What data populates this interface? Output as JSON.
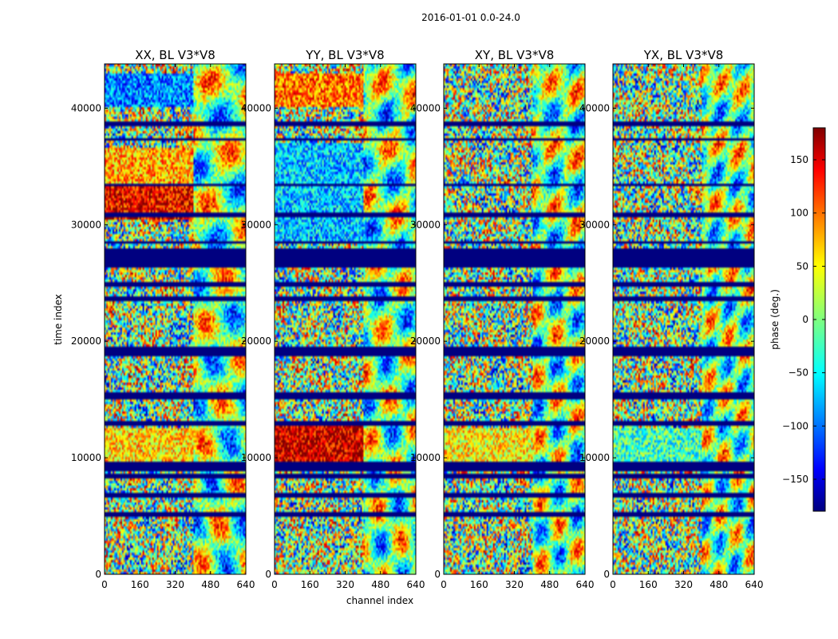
{
  "figure": {
    "suptitle": "2016-01-01 0.0-24.0",
    "xlabel": "channel index",
    "ylabel": "time index"
  },
  "chart_data": {
    "type": "heatmap",
    "colormap": "jet",
    "xlim": [
      0,
      640
    ],
    "ylim": [
      0,
      43800
    ],
    "x_ticks": [
      0,
      160,
      320,
      480,
      640
    ],
    "y_ticks": [
      0,
      10000,
      20000,
      30000,
      40000
    ],
    "panels": [
      {
        "title": "XX, BL V3*V8",
        "bright_ranges": [
          [
            30400,
            33400,
            0.85
          ],
          [
            33400,
            36500,
            0.45
          ],
          [
            9400,
            12600,
            0.35
          ],
          [
            40000,
            43000,
            -0.55
          ]
        ]
      },
      {
        "title": "YY, BL V3*V8",
        "bright_ranges": [
          [
            28500,
            37000,
            -0.4
          ],
          [
            9300,
            12900,
            0.95
          ],
          [
            40000,
            43000,
            0.6
          ]
        ]
      },
      {
        "title": "XY, BL V3*V8",
        "bright_ranges": [
          [
            9500,
            12600,
            0.3
          ]
        ]
      },
      {
        "title": "YX, BL V3*V8",
        "bright_ranges": [
          [
            9500,
            12600,
            -0.15
          ]
        ]
      }
    ],
    "flagged_time_ranges": [
      [
        26300,
        28000
      ]
    ],
    "stripe_times": [
      38700,
      37300,
      33400,
      30900,
      28500,
      24900,
      23700,
      19300,
      18900,
      15400,
      15100,
      12900,
      9400,
      9000,
      8400,
      6800,
      5200
    ],
    "colorbar": {
      "label": "phase (deg.)",
      "range": [
        -180,
        180
      ],
      "ticks": [
        -150,
        -100,
        -50,
        0,
        50,
        100,
        150
      ],
      "tick_labels": [
        "−150",
        "−100",
        "−50",
        "0",
        "50",
        "100",
        "150"
      ]
    }
  }
}
